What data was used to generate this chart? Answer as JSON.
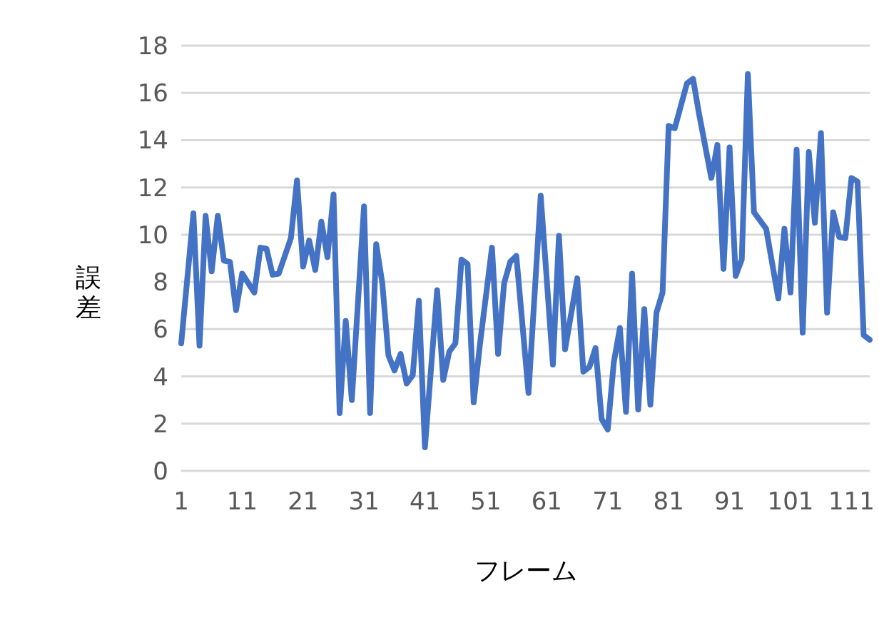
{
  "chart_data": {
    "type": "line",
    "xlabel": "フレーム",
    "ylabel": "誤差",
    "color": "#4472c4",
    "grid": "y",
    "xlim": [
      1,
      114
    ],
    "xticks": [
      1,
      11,
      21,
      31,
      41,
      51,
      61,
      71,
      81,
      91,
      101,
      111
    ],
    "ylim": [
      0,
      18
    ],
    "yticks": [
      0,
      2,
      4,
      6,
      8,
      10,
      12,
      14,
      16,
      18
    ],
    "x": [
      1,
      3,
      4,
      5,
      6,
      7,
      8,
      9,
      10,
      11,
      13,
      14,
      15,
      16,
      17,
      19,
      20,
      21,
      22,
      23,
      24,
      25,
      26,
      27,
      28,
      29,
      31,
      32,
      33,
      34,
      35,
      36,
      37,
      38,
      39,
      40,
      41,
      43,
      44,
      45,
      46,
      47,
      48,
      49,
      50,
      52,
      53,
      54,
      55,
      56,
      58,
      60,
      62,
      63,
      64,
      66,
      67,
      68,
      69,
      70,
      71,
      72,
      73,
      74,
      75,
      76,
      77,
      78,
      79,
      80,
      81,
      82,
      84,
      85,
      86,
      88,
      89,
      90,
      91,
      92,
      93,
      94,
      95,
      97,
      99,
      100,
      101,
      102,
      103,
      104,
      105,
      106,
      107,
      108,
      109,
      110,
      111,
      112,
      113,
      114
    ],
    "values": [
      5.4,
      10.9,
      5.3,
      10.8,
      8.45,
      10.8,
      8.9,
      8.85,
      6.8,
      8.35,
      7.55,
      9.45,
      9.4,
      8.3,
      8.35,
      9.85,
      12.3,
      8.65,
      9.75,
      8.5,
      10.55,
      9.05,
      11.7,
      2.45,
      6.35,
      3.0,
      11.2,
      2.45,
      9.6,
      7.95,
      4.9,
      4.25,
      4.95,
      3.7,
      4.05,
      7.2,
      1.0,
      7.65,
      3.85,
      5.05,
      5.4,
      8.95,
      8.75,
      2.9,
      5.3,
      9.45,
      4.95,
      7.95,
      8.85,
      9.1,
      3.3,
      11.65,
      4.5,
      9.95,
      5.15,
      8.15,
      4.2,
      4.4,
      5.2,
      2.2,
      1.75,
      4.6,
      6.05,
      2.5,
      8.35,
      2.6,
      6.85,
      2.8,
      6.7,
      7.55,
      14.6,
      14.5,
      16.4,
      16.6,
      15.1,
      12.4,
      13.8,
      8.55,
      13.7,
      8.25,
      8.95,
      16.8,
      10.95,
      10.25,
      7.3,
      10.25,
      7.55,
      13.6,
      5.85,
      13.5,
      10.5,
      14.3,
      6.7,
      10.95,
      9.9,
      9.85,
      12.4,
      12.25,
      5.75,
      5.55
    ]
  }
}
